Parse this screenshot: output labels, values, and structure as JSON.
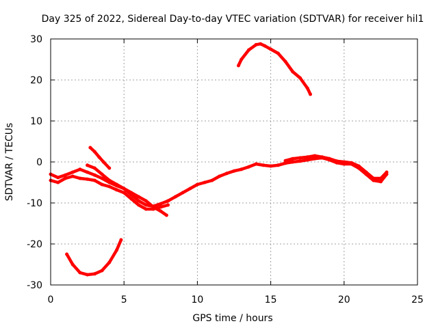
{
  "chart_data": {
    "type": "line",
    "title": "Day 325 of 2022, Sidereal Day-to-day VTEC variation (SDTVAR) for receiver hil1",
    "xlabel": "GPS time / hours",
    "ylabel": "SDTVAR / TECUs",
    "xlim": [
      0,
      25
    ],
    "ylim": [
      -30,
      30
    ],
    "xticks": [
      0,
      5,
      10,
      15,
      20,
      25
    ],
    "yticks": [
      -30,
      -20,
      -10,
      0,
      10,
      20,
      30
    ],
    "grid": true,
    "color": "#ff0000",
    "series": [
      {
        "name": "arc-1",
        "x": [
          0.0,
          0.5,
          1.0,
          1.5,
          2.0,
          2.5,
          3.0,
          3.5,
          4.0,
          4.5,
          5.0,
          5.5,
          6.0,
          6.5,
          7.0,
          7.5,
          8.0
        ],
        "y": [
          -3.0,
          -3.8,
          -3.2,
          -2.5,
          -1.8,
          -2.5,
          -3.2,
          -4.0,
          -5.0,
          -5.8,
          -6.5,
          -8.0,
          -9.5,
          -10.5,
          -10.8,
          -10.2,
          -9.5
        ]
      },
      {
        "name": "arc-2",
        "x": [
          0.0,
          0.5,
          1.0,
          1.5,
          2.0,
          2.5,
          3.0,
          3.5,
          4.0,
          4.5,
          5.0,
          5.5,
          6.0,
          6.5,
          7.0,
          7.5,
          8.0
        ],
        "y": [
          -4.5,
          -5.0,
          -4.0,
          -3.5,
          -4.0,
          -4.2,
          -4.5,
          -5.5,
          -6.0,
          -6.8,
          -7.5,
          -9.0,
          -10.5,
          -11.5,
          -11.5,
          -11.0,
          -10.5
        ]
      },
      {
        "name": "arc-3",
        "x": [
          2.5,
          3.0,
          3.5,
          4.0,
          4.5,
          5.0,
          5.5,
          6.0,
          6.5,
          7.0,
          7.5,
          7.9
        ],
        "y": [
          -0.8,
          -1.5,
          -3.0,
          -4.5,
          -5.5,
          -6.5,
          -7.5,
          -8.5,
          -9.5,
          -11.0,
          -12.0,
          -13.0
        ]
      },
      {
        "name": "arc-4",
        "x": [
          2.7,
          3.0,
          3.3,
          3.6,
          4.0
        ],
        "y": [
          3.5,
          2.5,
          1.2,
          0.0,
          -1.5
        ]
      },
      {
        "name": "arc-5",
        "x": [
          1.1,
          1.5,
          2.0,
          2.5,
          3.0,
          3.5,
          4.0,
          4.5,
          4.8
        ],
        "y": [
          -22.5,
          -25.0,
          -27.0,
          -27.5,
          -27.3,
          -26.5,
          -24.5,
          -21.5,
          -19.0
        ]
      },
      {
        "name": "arc-6",
        "x": [
          8.0,
          8.5,
          9.0,
          9.5,
          10.0,
          10.5,
          11.0,
          11.5,
          12.0,
          12.5,
          13.0,
          13.5,
          14.0,
          14.5,
          15.0,
          15.5,
          16.0,
          16.5,
          17.0,
          17.5,
          18.0,
          18.5,
          19.0,
          19.5,
          20.0,
          20.5,
          21.0,
          21.5,
          22.0,
          22.5,
          22.9
        ],
        "y": [
          -9.5,
          -8.5,
          -7.5,
          -6.5,
          -5.5,
          -5.0,
          -4.5,
          -3.5,
          -2.8,
          -2.2,
          -1.8,
          -1.2,
          -0.5,
          -0.8,
          -1.0,
          -0.8,
          -0.3,
          0.0,
          0.2,
          0.5,
          0.8,
          1.0,
          0.5,
          -0.2,
          -0.5,
          -0.5,
          -1.5,
          -3.0,
          -4.5,
          -4.8,
          -3.0
        ]
      },
      {
        "name": "arc-7",
        "x": [
          16.0,
          16.5,
          17.0,
          17.5,
          18.0,
          18.5,
          19.0,
          19.5,
          20.0,
          20.5,
          21.0,
          21.5,
          22.0,
          22.5,
          22.9
        ],
        "y": [
          0.3,
          0.8,
          1.0,
          1.2,
          1.5,
          1.2,
          0.8,
          0.2,
          0.0,
          -0.2,
          -1.0,
          -2.5,
          -4.0,
          -4.0,
          -2.5
        ]
      },
      {
        "name": "arc-8",
        "x": [
          12.8,
          13.0,
          13.5,
          14.0,
          14.3,
          14.6,
          15.0,
          15.5,
          16.0,
          16.5,
          17.0,
          17.5,
          17.7
        ],
        "y": [
          23.5,
          25.0,
          27.3,
          28.6,
          28.8,
          28.3,
          27.5,
          26.5,
          24.5,
          22.0,
          20.5,
          18.0,
          16.5
        ]
      }
    ]
  }
}
